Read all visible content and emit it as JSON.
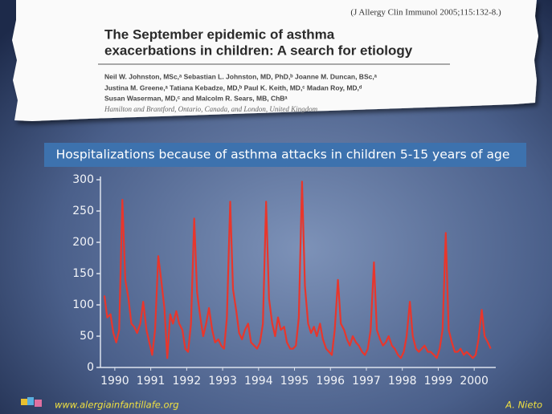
{
  "header": {
    "citation": "(J Allergy Clin Immunol 2005;115:132-8.)",
    "title": [
      "The September epidemic of asthma",
      "exacerbations in children: A search for etiology"
    ],
    "authors": [
      "Neil W. Johnston, MSc,ᵃ Sebastian L. Johnston, MD, PhD,ᵇ Joanne M. Duncan, BSc,ᵃ",
      "Justina M. Greene,ᵃ Tatiana Kebadze, MD,ᵇ Paul K. Keith, MD,ᶜ Madan Roy, MD,ᵈ",
      "Susan Waserman, MD,ᶜ and Malcolm R. Sears, MB, ChBᵃ"
    ],
    "affiliation": "Hamilton and Brantford, Ontario, Canada, and London, United Kingdom"
  },
  "chart_data": {
    "type": "line",
    "title": "Hospitalizations because of asthma attacks in children 5-15 years of age",
    "color": "#e8362c",
    "x": [
      1990.21,
      1990.29,
      1990.38,
      1990.46,
      1990.54,
      1990.62,
      1990.71,
      1990.79,
      1990.88,
      1990.96,
      1991.04,
      1991.12,
      1991.21,
      1991.29,
      1991.38,
      1991.46,
      1991.54,
      1991.62,
      1991.71,
      1991.79,
      1991.88,
      1991.96,
      1992.04,
      1992.12,
      1992.21,
      1992.29,
      1992.38,
      1992.46,
      1992.54,
      1992.62,
      1992.71,
      1992.79,
      1992.88,
      1992.96,
      1993.04,
      1993.12,
      1993.21,
      1993.29,
      1993.38,
      1993.46,
      1993.54,
      1993.62,
      1993.71,
      1993.79,
      1993.88,
      1993.96,
      1994.04,
      1994.12,
      1994.21,
      1994.29,
      1994.38,
      1994.46,
      1994.54,
      1994.62,
      1994.71,
      1994.79,
      1994.88,
      1994.96,
      1995.04,
      1995.12,
      1995.21,
      1995.29,
      1995.38,
      1995.46,
      1995.54,
      1995.62,
      1995.71,
      1995.79,
      1995.88,
      1995.96,
      1996.04,
      1996.12,
      1996.21,
      1996.29,
      1996.38,
      1996.46,
      1996.54,
      1996.62,
      1996.71,
      1996.79,
      1996.88,
      1996.96,
      1997.04,
      1997.12,
      1997.21,
      1997.29,
      1997.38,
      1997.46,
      1997.54,
      1997.62,
      1997.71,
      1997.79,
      1997.88,
      1997.96,
      1998.04,
      1998.12,
      1998.21,
      1998.29,
      1998.38,
      1998.46,
      1998.54,
      1998.62,
      1998.71,
      1998.79,
      1998.88,
      1998.96,
      1999.04,
      1999.12,
      1999.21,
      1999.29,
      1999.38,
      1999.46,
      1999.54,
      1999.62,
      1999.71,
      1999.79,
      1999.88,
      1999.96,
      2000.04,
      2000.12,
      2000.21,
      2000.29,
      2000.38,
      2000.46,
      2000.54,
      2000.62,
      2000.71,
      2000.79,
      2000.88,
      2000.96
    ],
    "values": [
      115,
      80,
      85,
      55,
      40,
      60,
      268,
      140,
      110,
      70,
      65,
      55,
      70,
      105,
      60,
      40,
      20,
      60,
      178,
      140,
      95,
      15,
      85,
      70,
      90,
      70,
      60,
      30,
      25,
      70,
      238,
      120,
      80,
      50,
      70,
      95,
      60,
      40,
      45,
      35,
      30,
      80,
      265,
      125,
      90,
      55,
      45,
      60,
      70,
      40,
      35,
      30,
      40,
      70,
      265,
      110,
      70,
      50,
      80,
      60,
      65,
      40,
      30,
      30,
      35,
      80,
      297,
      130,
      70,
      55,
      65,
      50,
      70,
      45,
      30,
      25,
      20,
      60,
      140,
      70,
      60,
      45,
      35,
      50,
      40,
      35,
      25,
      20,
      30,
      60,
      168,
      60,
      45,
      35,
      40,
      50,
      35,
      30,
      20,
      15,
      25,
      50,
      105,
      50,
      30,
      25,
      30,
      35,
      25,
      25,
      20,
      15,
      30,
      60,
      215,
      60,
      40,
      25,
      25,
      30,
      20,
      25,
      20,
      15,
      20,
      45,
      92,
      50,
      40,
      30
    ],
    "xlim": [
      1990.1,
      2001.1
    ],
    "xticks": [
      {
        "value": 1990.5,
        "label": "1990"
      },
      {
        "value": 1991.5,
        "label": "1991"
      },
      {
        "value": 1992.5,
        "label": "1992"
      },
      {
        "value": 1993.5,
        "label": "1993"
      },
      {
        "value": 1994.5,
        "label": "1994"
      },
      {
        "value": 1995.5,
        "label": "1995"
      },
      {
        "value": 1996.5,
        "label": "1996"
      },
      {
        "value": 1997.5,
        "label": "1997"
      },
      {
        "value": 1998.5,
        "label": "1998"
      },
      {
        "value": 1999.5,
        "label": "1999"
      },
      {
        "value": 2000.5,
        "label": "2000"
      }
    ],
    "ylim": [
      0,
      300
    ],
    "yticks": [
      0,
      50,
      100,
      150,
      200,
      250,
      300
    ]
  },
  "footer": {
    "website": "www.alergiainfantillafe.org",
    "author": "A. Nieto"
  }
}
